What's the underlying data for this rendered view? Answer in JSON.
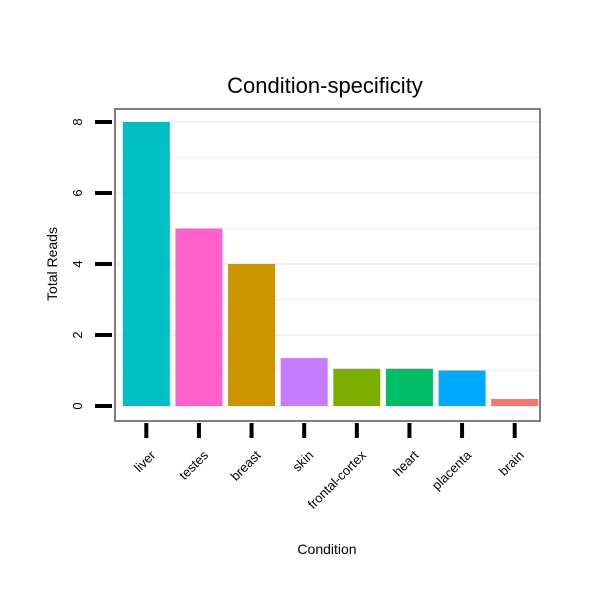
{
  "chart_data": {
    "type": "bar",
    "title": "Condition-specificity",
    "xlabel": "Condition",
    "ylabel": "Total Reads",
    "categories": [
      "liver",
      "testes",
      "breast",
      "skin",
      "frontal-cortex",
      "heart",
      "placenta",
      "brain"
    ],
    "values": [
      8.0,
      5.0,
      4.0,
      1.35,
      1.05,
      1.05,
      1.0,
      0.2
    ],
    "colors": [
      "#00BFC4",
      "#FF61CC",
      "#CD9600",
      "#C77CFF",
      "#7CAE00",
      "#00BE67",
      "#00A9FF",
      "#F8766D"
    ],
    "yticks": [
      0,
      2,
      4,
      6,
      8
    ],
    "ylim": [
      -0.4,
      8.4
    ],
    "grid": true,
    "legend": "none"
  }
}
